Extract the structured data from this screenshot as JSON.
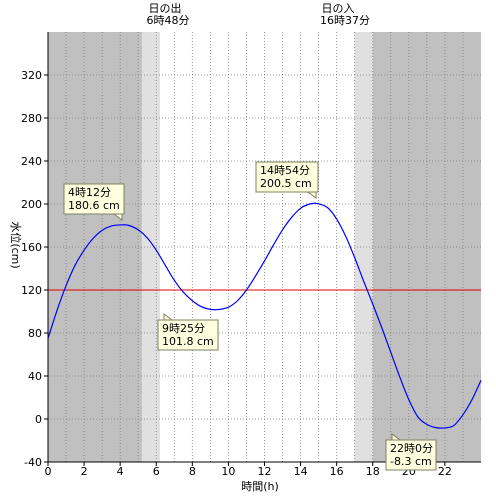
{
  "chart_data": {
    "type": "line",
    "xlabel": "時間(h)",
    "ylabel": "水位(cm)",
    "xlim": [
      0,
      24
    ],
    "ylim": [
      -40,
      360
    ],
    "xticks": [
      0,
      2,
      4,
      6,
      8,
      10,
      12,
      14,
      16,
      18,
      20,
      22
    ],
    "yticks": [
      -40,
      0,
      40,
      80,
      120,
      160,
      200,
      240,
      280,
      320
    ],
    "grid": true,
    "sunrise": {
      "label": "日の出",
      "time": "6時48分",
      "hour": 6.8
    },
    "sunset": {
      "label": "日の入",
      "time": "16時37分",
      "hour": 16.617
    },
    "twilight_bands": [
      [
        5.2,
        6.2
      ],
      [
        17.0,
        18.0
      ]
    ],
    "reference_line": {
      "value": 120,
      "color": "#e00000"
    },
    "series": [
      {
        "color": "#0000ff",
        "x": [
          0,
          0.5,
          1,
          1.5,
          2,
          2.5,
          3,
          3.5,
          4,
          4.2,
          4.5,
          5,
          5.5,
          6,
          6.5,
          7,
          7.5,
          8,
          8.5,
          9,
          9.42,
          10,
          10.5,
          11,
          11.5,
          12,
          12.5,
          13,
          13.5,
          14,
          14.5,
          14.9,
          15.5,
          16,
          16.5,
          17,
          17.5,
          18,
          18.5,
          19,
          19.5,
          20,
          20.5,
          21,
          21.5,
          22,
          22.5,
          23,
          23.5,
          24
        ],
        "y": [
          75,
          101,
          124,
          143,
          157,
          168,
          175.5,
          179.5,
          180.5,
          180.6,
          180,
          176,
          168.5,
          157,
          143,
          129,
          118,
          110,
          104.5,
          102,
          101.8,
          104,
          110,
          120,
          133,
          147,
          162,
          176,
          187.5,
          196,
          200,
          200.5,
          196.5,
          186,
          170,
          150,
          128,
          107,
          85,
          62,
          39,
          18,
          2,
          -5,
          -8,
          -8.3,
          -6,
          4,
          18,
          36
        ]
      }
    ],
    "annotations": [
      {
        "time": "4時12分",
        "value": "180.6 cm",
        "hour": 4.2,
        "level": 180.6
      },
      {
        "time": "9時25分",
        "value": "101.8 cm",
        "hour": 9.42,
        "level": 101.8
      },
      {
        "time": "14時54分",
        "value": "200.5 cm",
        "hour": 14.9,
        "level": 200.5
      },
      {
        "time": "22時0分",
        "value": "-8.3 cm",
        "hour": 22.0,
        "level": -8.3
      }
    ]
  }
}
